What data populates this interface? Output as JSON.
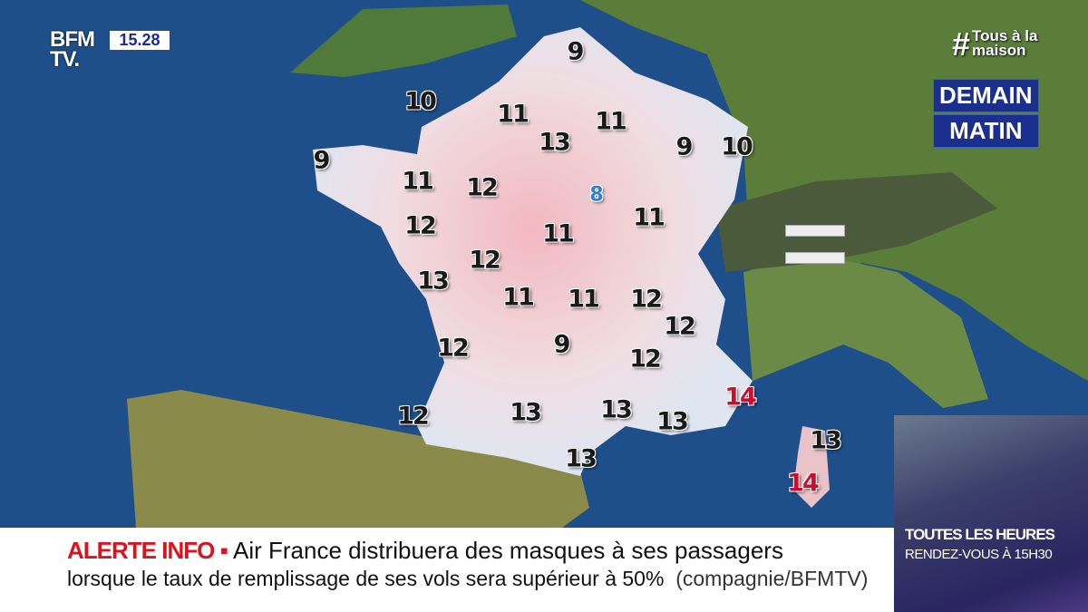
{
  "channel": {
    "logo": "BFM TV.",
    "clock": "15.28",
    "hashtag_symbol": "#",
    "hashtag_line1": "Tous à la",
    "hashtag_line2": "maison"
  },
  "forecast": {
    "period_line1": "DEMAIN",
    "period_line2": "MATIN",
    "legend_icon": "equals-icon",
    "temperatures": [
      9,
      10,
      11,
      11,
      13,
      9,
      10,
      9,
      11,
      12,
      8,
      11,
      12,
      11,
      12,
      13,
      11,
      11,
      12,
      12,
      9,
      12,
      12,
      14,
      12,
      13,
      13,
      13,
      13,
      13,
      14
    ],
    "colors": {
      "cold": "#2f7fd6",
      "normal": "#1a1a1a",
      "hot": "#c8102e"
    }
  },
  "ticker": {
    "label": "ALERTE INFO",
    "line1": "Air France distribuera des masques à ses passagers",
    "line2": "lorsque le taux de remplissage de ses vols sera supérieur à 50%",
    "source": "(compagnie/BFMTV)"
  },
  "promo": {
    "line1": "TOUTES LES HEURES",
    "line2": "RENDEZ-VOUS À 15H30"
  }
}
